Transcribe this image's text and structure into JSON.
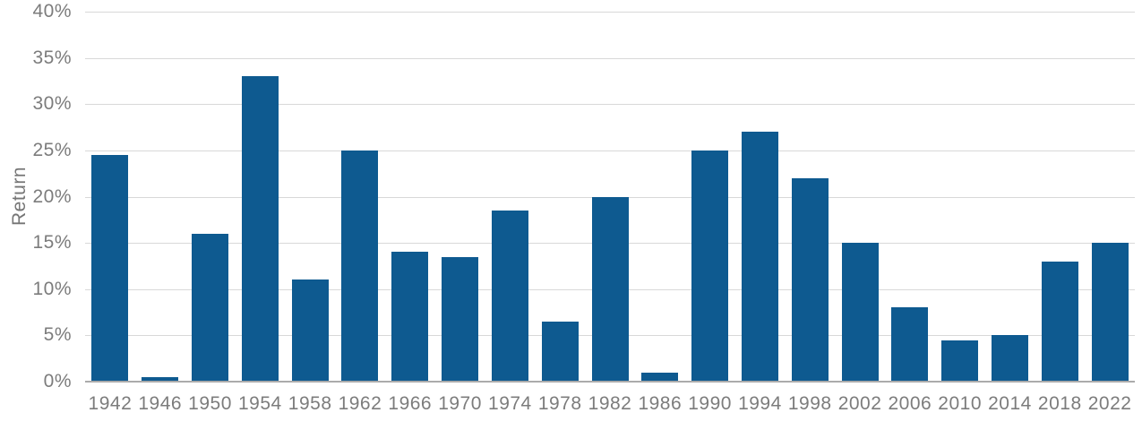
{
  "chart_data": {
    "type": "bar",
    "title": "",
    "xlabel": "",
    "ylabel": "Return",
    "categories": [
      "1942",
      "1946",
      "1950",
      "1954",
      "1958",
      "1962",
      "1966",
      "1970",
      "1974",
      "1978",
      "1982",
      "1986",
      "1990",
      "1994",
      "1998",
      "2002",
      "2006",
      "2010",
      "2014",
      "2018",
      "2022"
    ],
    "values": [
      24.5,
      0.5,
      16,
      33,
      11,
      25,
      14,
      13.5,
      18.5,
      6.5,
      20,
      1,
      25,
      27,
      22,
      15,
      8,
      4.5,
      5,
      13,
      15
    ],
    "y_ticks": [
      {
        "label": "40%",
        "value": 40
      },
      {
        "label": "35%",
        "value": 35
      },
      {
        "label": "30%",
        "value": 30
      },
      {
        "label": "25%",
        "value": 25
      },
      {
        "label": "20%",
        "value": 20
      },
      {
        "label": "15%",
        "value": 15
      },
      {
        "label": "10%",
        "value": 10
      },
      {
        "label": "5%",
        "value": 5
      },
      {
        "label": "0%",
        "value": 0
      }
    ],
    "ylim": [
      0,
      40
    ],
    "grid": "horizontal",
    "legend": "none",
    "colors": {
      "bar": "#0E5A90",
      "gridline": "#D8D8D8",
      "axis_line": "#ABABAB",
      "tick_text": "#7C7C7C",
      "axis_title_text": "#757575"
    }
  }
}
